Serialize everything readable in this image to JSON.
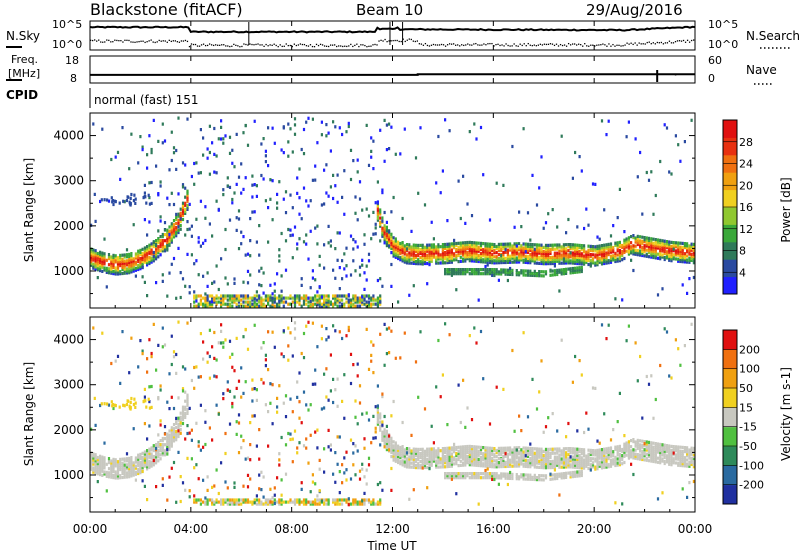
{
  "header": {
    "radar": "Blackstone (fitACF)",
    "beam": "Beam 10",
    "date": "29/Aug/2016"
  },
  "top_panels": {
    "nsky_label": "N.Sky",
    "nsky_ticks": [
      "10^5",
      "10^0"
    ],
    "nsearch_label": "N.Search",
    "nsearch_ticks": [
      "10^5",
      "10^0"
    ],
    "freq_label_1": "Freq.",
    "freq_label_2": "[MHz]",
    "freq_ticks": [
      "18",
      "8"
    ],
    "nave_label": "Nave",
    "nave_ticks": [
      "60",
      "0"
    ],
    "cpid_label": "CPID",
    "cpid_value": "normal (fast) 151"
  },
  "xaxis": {
    "label": "Time UT",
    "ticks": [
      "00:00",
      "04:00",
      "08:00",
      "12:00",
      "16:00",
      "20:00",
      "00:00"
    ]
  },
  "chart_data": [
    {
      "type": "heatmap",
      "name": "power",
      "ylabel": "Slant Range [km]",
      "yticks": [
        "4000",
        "3000",
        "2000",
        "1000"
      ],
      "ylim": [
        180,
        4500
      ],
      "xlim_hours": [
        0,
        24
      ],
      "colorbar": {
        "label": "Power [dB]",
        "ticks": [
          "28",
          "24",
          "20",
          "16",
          "12",
          "8",
          "4"
        ],
        "range": [
          0,
          30
        ],
        "colors": [
          "#2020ff",
          "#2a4aa0",
          "#2f7a5a",
          "#3aa83a",
          "#90c830",
          "#f0d020",
          "#f0a010",
          "#f07010",
          "#e83010",
          "#e01010"
        ]
      },
      "echo_bands": [
        {
          "desc": "sunset band",
          "t": [
            0.0,
            0.5,
            1.0,
            1.5,
            2.0,
            2.5,
            3.0,
            3.5,
            3.9
          ],
          "range_km": [
            1300,
            1200,
            1150,
            1180,
            1280,
            1450,
            1700,
            2100,
            2700
          ]
        },
        {
          "desc": "morning band",
          "t": [
            11.3,
            11.6,
            12.0,
            12.5,
            13.0,
            14.0,
            15.0,
            16.0,
            17.0,
            18.0,
            19.0,
            20.0,
            21.0,
            21.5,
            22.0,
            23.0,
            24.0
          ],
          "range_km": [
            2500,
            1900,
            1550,
            1400,
            1380,
            1400,
            1450,
            1400,
            1420,
            1380,
            1400,
            1350,
            1450,
            1600,
            1550,
            1450,
            1400
          ]
        },
        {
          "desc": "lower band",
          "t": [
            14.0,
            16.0,
            18.0,
            19.5
          ],
          "range_km": [
            1000,
            1000,
            950,
            1050
          ]
        }
      ]
    },
    {
      "type": "heatmap",
      "name": "velocity",
      "ylabel": "Slant Range [km]",
      "yticks": [
        "4000",
        "3000",
        "2000",
        "1000"
      ],
      "ylim": [
        180,
        4500
      ],
      "xlim_hours": [
        0,
        24
      ],
      "colorbar": {
        "label": "Velocity [m s-1]",
        "ticks": [
          "200",
          "100",
          "50",
          "15",
          "-15",
          "-50",
          "-100",
          "-200"
        ],
        "range": [
          -250,
          250
        ],
        "colors": [
          "#2030a0",
          "#2a6aa0",
          "#2e8a5a",
          "#50c040",
          "#c8c8c0",
          "#f0d020",
          "#f0a010",
          "#f07010",
          "#e01010"
        ]
      }
    }
  ]
}
